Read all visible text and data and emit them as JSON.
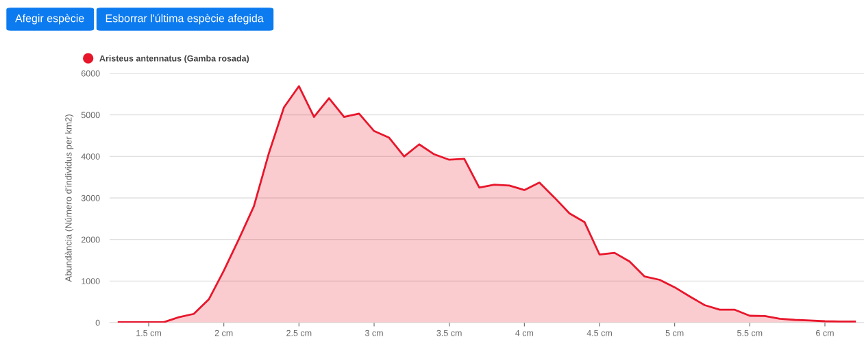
{
  "chart_data": {
    "type": "area",
    "ylabel": "Abundància (Número d'individus per km2)",
    "annotations": [
      "Afegir espècie",
      "Esborrar l'última espècie afegida"
    ],
    "x": [
      1.3,
      1.4,
      1.5,
      1.6,
      1.7,
      1.8,
      1.9,
      2.0,
      2.1,
      2.2,
      2.3,
      2.4,
      2.5,
      2.6,
      2.7,
      2.8,
      2.9,
      3.0,
      3.1,
      3.2,
      3.3,
      3.4,
      3.5,
      3.6,
      3.7,
      3.8,
      3.9,
      4.0,
      4.1,
      4.2,
      4.3,
      4.4,
      4.5,
      4.6,
      4.7,
      4.8,
      4.9,
      5.0,
      5.1,
      5.2,
      5.3,
      5.4,
      5.5,
      5.6,
      5.7,
      5.8,
      5.9,
      6.0,
      6.1,
      6.2
    ],
    "series": [
      {
        "name": "Aristeus antennatus (Gamba rosada)",
        "color": "#e8162b",
        "values": [
          10,
          10,
          10,
          10,
          130,
          210,
          560,
          1250,
          2010,
          2800,
          4080,
          5180,
          5690,
          4950,
          5400,
          4950,
          5030,
          4610,
          4450,
          4000,
          4290,
          4050,
          3920,
          3940,
          3250,
          3320,
          3300,
          3190,
          3370,
          3010,
          2630,
          2420,
          1640,
          1680,
          1470,
          1110,
          1030,
          850,
          630,
          420,
          310,
          310,
          165,
          160,
          94,
          66,
          50,
          33,
          28,
          28
        ]
      }
    ],
    "xlim": [
      1.24,
      6.26
    ],
    "xticks": [
      {
        "value": 1.5,
        "label": "1.5 cm"
      },
      {
        "value": 2,
        "label": "2 cm"
      },
      {
        "value": 2.5,
        "label": "2.5 cm"
      },
      {
        "value": 3,
        "label": "3 cm"
      },
      {
        "value": 3.5,
        "label": "3.5 cm"
      },
      {
        "value": 4,
        "label": "4 cm"
      },
      {
        "value": 4.5,
        "label": "4.5 cm"
      },
      {
        "value": 5,
        "label": "5 cm"
      },
      {
        "value": 5.5,
        "label": "5.5 cm"
      },
      {
        "value": 6,
        "label": "6 cm"
      }
    ],
    "ylim": [
      0,
      6000
    ],
    "yticks": [
      0,
      1000,
      2000,
      3000,
      4000,
      5000,
      6000
    ],
    "grid": "y",
    "legend": "top left"
  }
}
